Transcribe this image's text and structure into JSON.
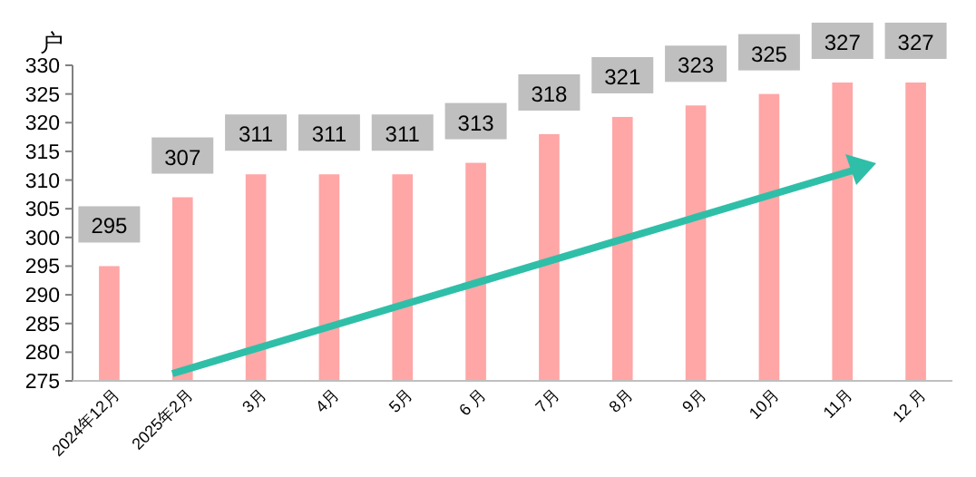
{
  "chart_data": {
    "type": "bar",
    "ylabel": "户",
    "categories": [
      "2024年12月",
      "2025年2月",
      "3月",
      "4月",
      "5月",
      "6 月",
      "7月",
      "8月",
      "9月",
      "10月",
      "11月",
      "12 月"
    ],
    "values": [
      295,
      307,
      311,
      311,
      311,
      313,
      318,
      321,
      323,
      325,
      327,
      327
    ],
    "color": "#ffa6a6",
    "ylim": [
      275,
      330
    ],
    "yticks": [
      275,
      280,
      285,
      290,
      295,
      300,
      305,
      310,
      315,
      320,
      325,
      330
    ],
    "data_labels": true,
    "grid": false
  }
}
